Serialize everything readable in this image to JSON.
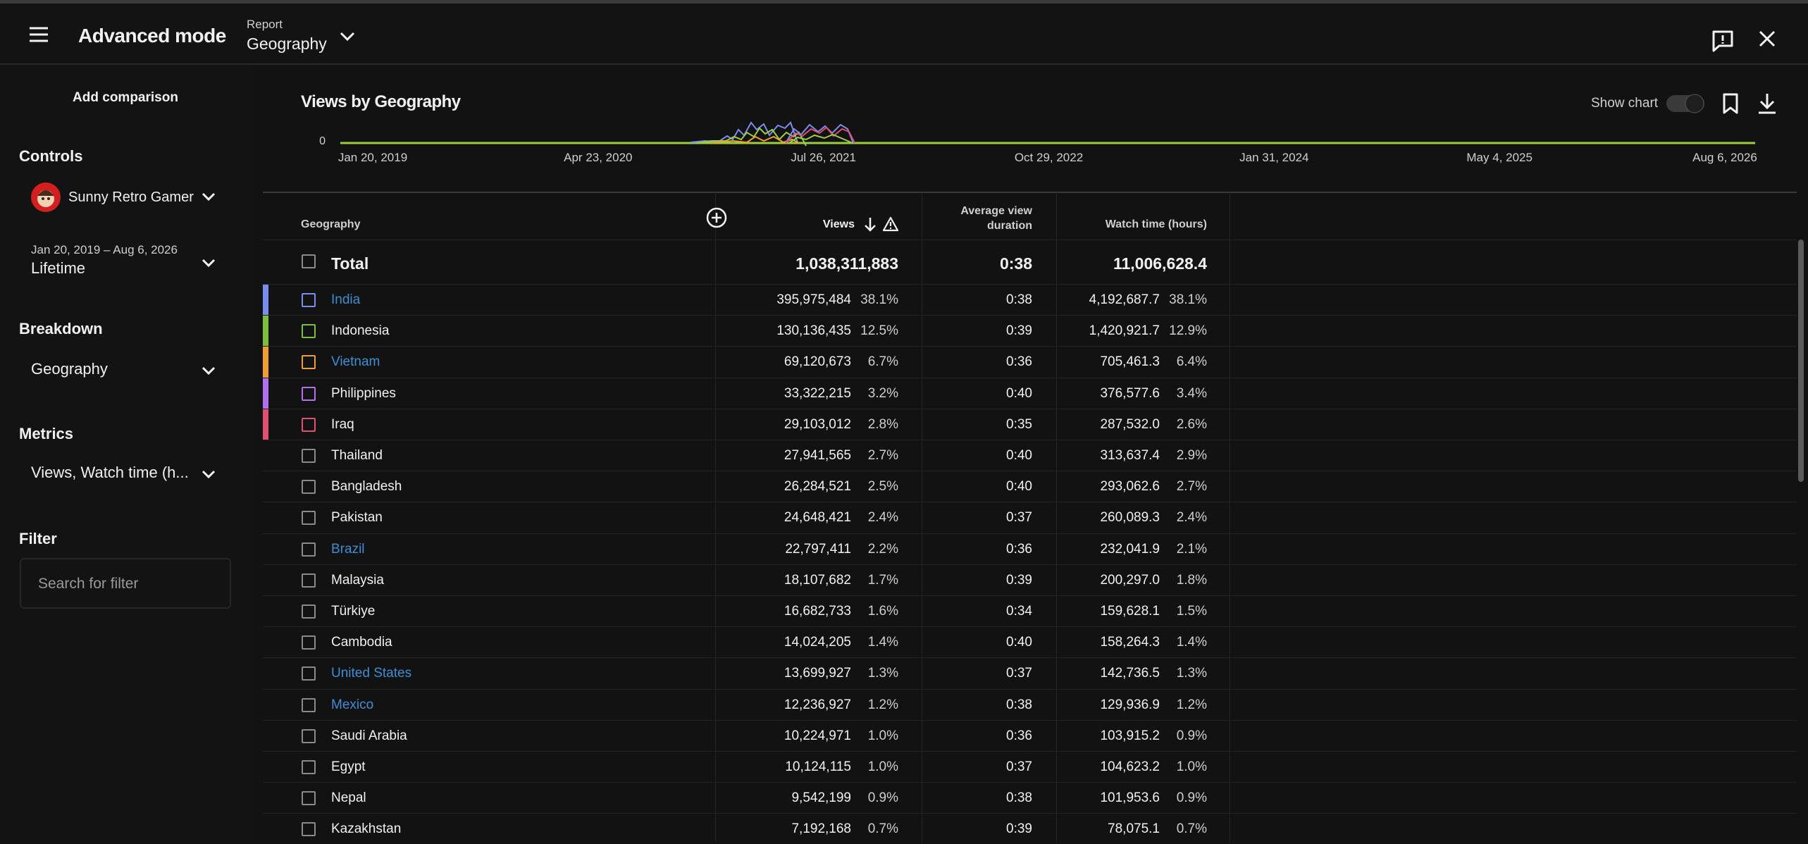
{
  "header": {
    "title": "Advanced mode",
    "report_label": "Report",
    "report_value": "Geography"
  },
  "sidebar": {
    "add_comparison": "Add comparison",
    "controls_heading": "Controls",
    "channel": "Sunny Retro Gamer",
    "date_range": "Jan 20, 2019 – Aug 6, 2026",
    "period": "Lifetime",
    "breakdown_heading": "Breakdown",
    "breakdown": "Geography",
    "metrics_heading": "Metrics",
    "metrics": "Views, Watch time (h...",
    "filter_heading": "Filter",
    "filter_placeholder": "Search for filter"
  },
  "chart": {
    "title": "Views by Geography",
    "show_chart": "Show chart",
    "y_label": "0",
    "x_labels": [
      "Jan 20, 2019",
      "Apr 23, 2020",
      "Jul 26, 2021",
      "Oct 29, 2022",
      "Jan 31, 2024",
      "May 4, 2025",
      "Aug 6, 2026"
    ]
  },
  "table": {
    "columns": {
      "geography": "Geography",
      "views": "Views",
      "avg_duration": "Average view duration",
      "watch_time": "Watch time (hours)"
    },
    "total": {
      "label": "Total",
      "views": "1,038,311,883",
      "avg_duration": "0:38",
      "watch_time": "11,006,628.4"
    },
    "rows": [
      {
        "country": "India",
        "views": "395,975,484",
        "views_share": "38.1%",
        "avg_duration": "0:38",
        "watch_time": "4,192,687.7",
        "watch_share": "38.1%"
      },
      {
        "country": "Indonesia",
        "views": "130,136,435",
        "views_share": "12.5%",
        "avg_duration": "0:39",
        "watch_time": "1,420,921.7",
        "watch_share": "12.9%"
      },
      {
        "country": "Vietnam",
        "views": "69,120,673",
        "views_share": "6.7%",
        "avg_duration": "0:36",
        "watch_time": "705,461.3",
        "watch_share": "6.4%"
      },
      {
        "country": "Philippines",
        "views": "33,322,215",
        "views_share": "3.2%",
        "avg_duration": "0:40",
        "watch_time": "376,577.6",
        "watch_share": "3.4%"
      },
      {
        "country": "Iraq",
        "views": "29,103,012",
        "views_share": "2.8%",
        "avg_duration": "0:35",
        "watch_time": "287,532.0",
        "watch_share": "2.6%"
      },
      {
        "country": "Thailand",
        "views": "27,941,565",
        "views_share": "2.7%",
        "avg_duration": "0:40",
        "watch_time": "313,637.4",
        "watch_share": "2.9%"
      },
      {
        "country": "Bangladesh",
        "views": "26,284,521",
        "views_share": "2.5%",
        "avg_duration": "0:40",
        "watch_time": "293,062.6",
        "watch_share": "2.7%"
      },
      {
        "country": "Pakistan",
        "views": "24,648,421",
        "views_share": "2.4%",
        "avg_duration": "0:37",
        "watch_time": "260,089.3",
        "watch_share": "2.4%"
      },
      {
        "country": "Brazil",
        "views": "22,797,411",
        "views_share": "2.2%",
        "avg_duration": "0:36",
        "watch_time": "232,041.9",
        "watch_share": "2.1%"
      },
      {
        "country": "Malaysia",
        "views": "18,107,682",
        "views_share": "1.7%",
        "avg_duration": "0:39",
        "watch_time": "200,297.0",
        "watch_share": "1.8%"
      },
      {
        "country": "Türkiye",
        "views": "16,682,733",
        "views_share": "1.6%",
        "avg_duration": "0:34",
        "watch_time": "159,628.1",
        "watch_share": "1.5%"
      },
      {
        "country": "Cambodia",
        "views": "14,024,205",
        "views_share": "1.4%",
        "avg_duration": "0:40",
        "watch_time": "158,264.3",
        "watch_share": "1.4%"
      },
      {
        "country": "United States",
        "views": "13,699,927",
        "views_share": "1.3%",
        "avg_duration": "0:37",
        "watch_time": "142,736.5",
        "watch_share": "1.3%"
      },
      {
        "country": "Mexico",
        "views": "12,236,927",
        "views_share": "1.2%",
        "avg_duration": "0:38",
        "watch_time": "129,936.9",
        "watch_share": "1.2%"
      },
      {
        "country": "Saudi Arabia",
        "views": "10,224,971",
        "views_share": "1.0%",
        "avg_duration": "0:36",
        "watch_time": "103,915.2",
        "watch_share": "0.9%"
      },
      {
        "country": "Egypt",
        "views": "10,124,115",
        "views_share": "1.0%",
        "avg_duration": "0:37",
        "watch_time": "104,623.2",
        "watch_share": "1.0%"
      },
      {
        "country": "Nepal",
        "views": "9,542,199",
        "views_share": "0.9%",
        "avg_duration": "0:38",
        "watch_time": "101,953.6",
        "watch_share": "0.9%"
      },
      {
        "country": "Kazakhstan",
        "views": "7,192,168",
        "views_share": "0.7%",
        "avg_duration": "0:39",
        "watch_time": "78,075.1",
        "watch_share": "0.7%"
      }
    ]
  }
}
